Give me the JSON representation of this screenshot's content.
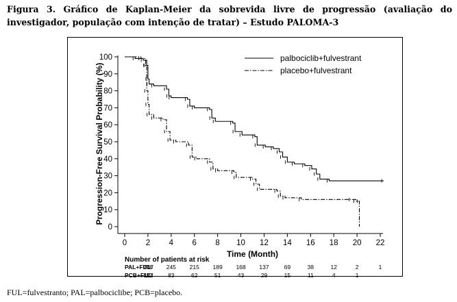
{
  "caption": "Figura 3. Gráfico de Kaplan-Meier da sobrevida livre de progressão (avaliação do investigador, população com intenção de tratar) – Estudo PALOMA-3",
  "footer": "FUL=fulvestranto; PAL=palbociclibe; PCB=placebo.",
  "chart_data": {
    "type": "line",
    "subtype": "kaplan-meier-step",
    "xlabel": "Time (Month)",
    "ylabel": "Progression-Free Survival Probability (%)",
    "xlim": [
      0,
      22
    ],
    "ylim": [
      0,
      100
    ],
    "xticks": [
      0,
      2,
      4,
      6,
      8,
      10,
      12,
      14,
      16,
      18,
      20,
      22
    ],
    "yticks": [
      0,
      10,
      20,
      30,
      40,
      50,
      60,
      70,
      80,
      90,
      100
    ],
    "grid": false,
    "legend_position": "top-right",
    "series": [
      {
        "name": "palbociclib+fulvestrant",
        "style": "solid",
        "color": "#000000",
        "points": [
          [
            0,
            100
          ],
          [
            0.9,
            99
          ],
          [
            1.6,
            98
          ],
          [
            1.9,
            95
          ],
          [
            2.0,
            87
          ],
          [
            2.1,
            84
          ],
          [
            2.5,
            83
          ],
          [
            3.6,
            81
          ],
          [
            3.8,
            77
          ],
          [
            4.0,
            76
          ],
          [
            5.4,
            75
          ],
          [
            5.6,
            71
          ],
          [
            6.0,
            70
          ],
          [
            7.3,
            69
          ],
          [
            7.5,
            64
          ],
          [
            7.8,
            62
          ],
          [
            9.3,
            61
          ],
          [
            9.5,
            56
          ],
          [
            10.1,
            54
          ],
          [
            11.2,
            53
          ],
          [
            11.4,
            48
          ],
          [
            12.1,
            47
          ],
          [
            12.8,
            46
          ],
          [
            13.3,
            44
          ],
          [
            13.6,
            41
          ],
          [
            14.0,
            38
          ],
          [
            14.6,
            37
          ],
          [
            15.5,
            36
          ],
          [
            16.1,
            34
          ],
          [
            16.5,
            31
          ],
          [
            16.8,
            28
          ],
          [
            17.6,
            27
          ],
          [
            22.3,
            27
          ]
        ]
      },
      {
        "name": "placebo+fulvestrant",
        "style": "dash-dot",
        "color": "#000000",
        "points": [
          [
            0,
            100
          ],
          [
            1.4,
            99
          ],
          [
            1.8,
            95
          ],
          [
            1.9,
            80
          ],
          [
            2.0,
            72
          ],
          [
            2.1,
            66
          ],
          [
            2.5,
            64
          ],
          [
            3.3,
            63
          ],
          [
            3.6,
            56
          ],
          [
            3.9,
            51
          ],
          [
            4.4,
            50
          ],
          [
            5.5,
            48
          ],
          [
            5.8,
            41
          ],
          [
            6.2,
            40
          ],
          [
            7.3,
            38
          ],
          [
            7.6,
            34
          ],
          [
            8.0,
            33
          ],
          [
            9.4,
            32
          ],
          [
            9.6,
            29
          ],
          [
            11.0,
            28
          ],
          [
            11.3,
            25
          ],
          [
            11.6,
            22
          ],
          [
            13.1,
            21
          ],
          [
            13.4,
            18
          ],
          [
            13.8,
            17
          ],
          [
            15.2,
            16
          ],
          [
            19.5,
            16
          ],
          [
            19.9,
            15
          ],
          [
            20.2,
            15
          ],
          [
            20.2,
            0
          ]
        ]
      }
    ],
    "risk_table": {
      "title": "Number of patients at risk",
      "times": [
        0,
        2,
        4,
        6,
        8,
        10,
        12,
        14,
        16,
        18,
        20,
        22
      ],
      "rows": [
        {
          "label": "PAL+FUL",
          "values": [
            "347",
            "276",
            "245",
            "215",
            "189",
            "168",
            "137",
            "69",
            "38",
            "12",
            "2",
            "1"
          ]
        },
        {
          "label": "PCB+FUL",
          "values": [
            "174",
            "112",
            "83",
            "62",
            "51",
            "43",
            "29",
            "15",
            "11",
            "4",
            "1",
            ""
          ]
        }
      ]
    }
  }
}
